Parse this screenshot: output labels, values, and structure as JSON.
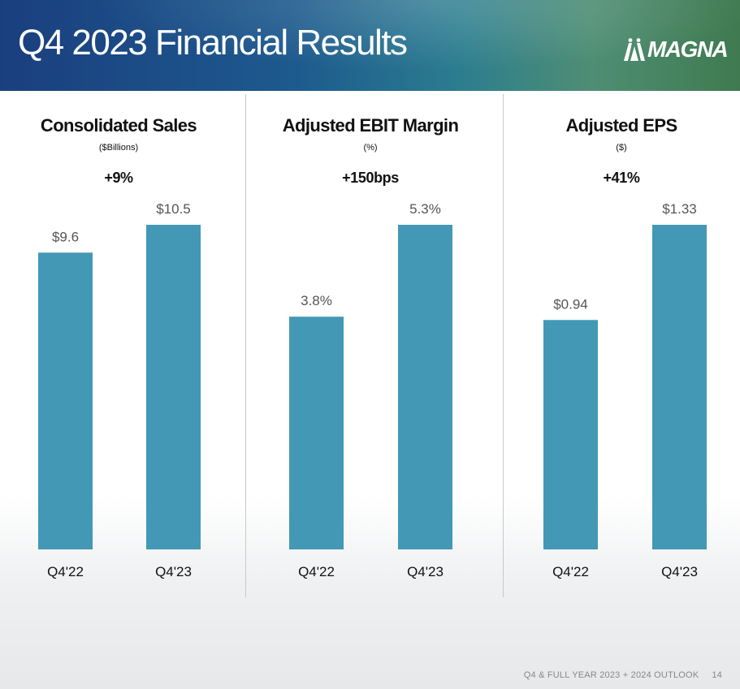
{
  "header": {
    "title": "Q4 2023 Financial Results",
    "logo_text": "MAGNA",
    "logo_icon": "magna-m-icon"
  },
  "colors": {
    "bar": "#4398b6",
    "header_left": "#1a3f7e",
    "header_right": "#3f7a50"
  },
  "chart_data": [
    {
      "type": "bar",
      "title": "Consolidated Sales",
      "unit": "($Billions)",
      "change": "+9%",
      "categories": [
        "Q4'22",
        "Q4'23"
      ],
      "values": [
        9.6,
        10.5
      ],
      "labels": [
        "$9.6",
        "$10.5"
      ],
      "ylim": [
        0,
        10.5
      ],
      "xlabel": "",
      "ylabel": ""
    },
    {
      "type": "bar",
      "title": "Adjusted EBIT Margin",
      "unit": "(%)",
      "change": "+150bps",
      "categories": [
        "Q4'22",
        "Q4'23"
      ],
      "values": [
        3.8,
        5.3
      ],
      "labels": [
        "3.8%",
        "5.3%"
      ],
      "ylim": [
        0,
        5.3
      ],
      "xlabel": "",
      "ylabel": ""
    },
    {
      "type": "bar",
      "title": "Adjusted EPS",
      "unit": "($)",
      "change": "+41%",
      "categories": [
        "Q4'22",
        "Q4'23"
      ],
      "values": [
        0.94,
        1.33
      ],
      "labels": [
        "$0.94",
        "$1.33"
      ],
      "ylim": [
        0,
        1.33
      ],
      "xlabel": "",
      "ylabel": ""
    }
  ],
  "footer": {
    "text": "Q4 & FULL YEAR 2023 + 2024 OUTLOOK",
    "page_number": "14"
  }
}
